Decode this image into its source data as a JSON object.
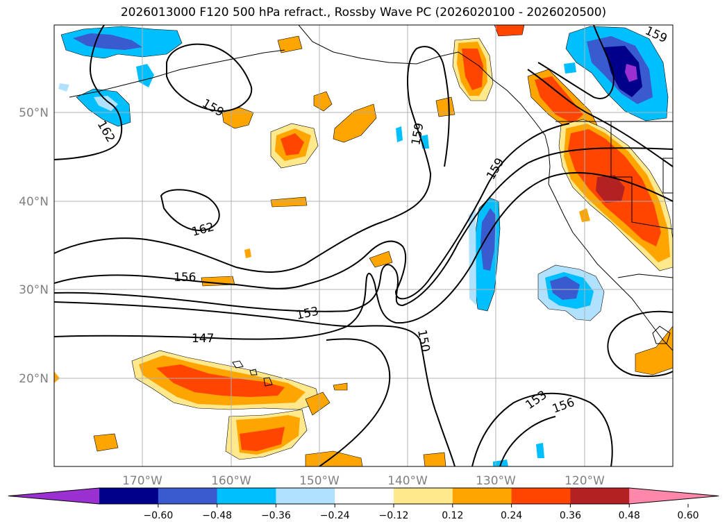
{
  "title": "2026013000 F120 500 hPa refract., Rossby Wave PC (2026020100 - 2026020500)",
  "axes": {
    "lon_labels": [
      "170°W",
      "160°W",
      "150°W",
      "140°W",
      "130°W",
      "120°W"
    ],
    "lat_labels": [
      "50°N",
      "40°N",
      "30°N",
      "20°N"
    ]
  },
  "contour_labels": [
    "162",
    "159",
    "162",
    "156",
    "153",
    "147",
    "150",
    "159",
    "159",
    "153",
    "156",
    "159"
  ],
  "colorbar": {
    "ticks": [
      "−0.60",
      "−0.48",
      "−0.36",
      "−0.24",
      "−0.12",
      "0.12",
      "0.24",
      "0.36",
      "0.48",
      "0.60"
    ],
    "colors": [
      "#9b30d0",
      "#00008b",
      "#3a5bd0",
      "#00bfff",
      "#b0e2ff",
      "#ffffff",
      "#ffe98c",
      "#ffa500",
      "#ff4500",
      "#b22222",
      "#ff88aa"
    ]
  }
}
